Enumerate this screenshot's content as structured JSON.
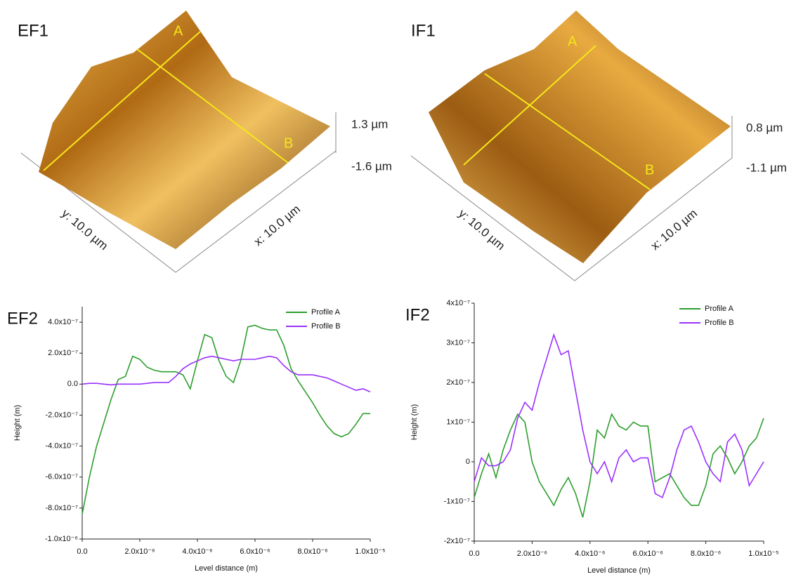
{
  "images": [
    {
      "label": "EF1",
      "line_labels": [
        "A",
        "B"
      ],
      "scale_labels": [
        "1.3 µm",
        "-1.6 µm"
      ],
      "axis_labels": [
        "y: 10.0 µm",
        "x: 10.0 µm"
      ]
    },
    {
      "label": "IF1",
      "line_labels": [
        "A",
        "B"
      ],
      "scale_labels": [
        "0.8 µm",
        "-1.1 µm"
      ],
      "axis_labels": [
        "y: 10.0 µm",
        "x: 10.0 µm"
      ]
    }
  ],
  "chart_data": [
    {
      "type": "line",
      "title": "EF2",
      "x_label": "Level distance (m)",
      "y_label": "Height (m)",
      "legend": "upper right",
      "x": [
        0,
        2.5e-07,
        5e-07,
        7.5e-07,
        1e-06,
        1.25e-06,
        1.5e-06,
        1.75e-06,
        2e-06,
        2.25e-06,
        2.5e-06,
        2.75e-06,
        3e-06,
        3.25e-06,
        3.5e-06,
        3.75e-06,
        4e-06,
        4.25e-06,
        4.5e-06,
        4.75e-06,
        5e-06,
        5.25e-06,
        5.5e-06,
        5.75e-06,
        6e-06,
        6.25e-06,
        6.5e-06,
        6.75e-06,
        7e-06,
        7.25e-06,
        7.5e-06,
        7.75e-06,
        8e-06,
        8.25e-06,
        8.5e-06,
        8.75e-06,
        9e-06,
        9.25e-06,
        9.5e-06,
        9.75e-06,
        1e-05
      ],
      "series": [
        {
          "name": "Profile A",
          "color": "#2e9e2e",
          "values": [
            -8.4e-07,
            -6e-07,
            -4e-07,
            -2.5e-07,
            -1e-07,
            3e-08,
            5e-08,
            1.8e-07,
            1.6e-07,
            1.1e-07,
            9e-08,
            8e-08,
            8e-08,
            8e-08,
            6e-08,
            -3e-08,
            1.5e-07,
            3.2e-07,
            3e-07,
            1.5e-07,
            5e-08,
            1e-08,
            1.5e-07,
            3.7e-07,
            3.8e-07,
            3.6e-07,
            3.5e-07,
            3.5e-07,
            2.5e-07,
            1e-07,
            2e-08,
            -5e-08,
            -1.2e-07,
            -2e-07,
            -2.7e-07,
            -3.2e-07,
            -3.4e-07,
            -3.2e-07,
            -2.6e-07,
            -1.9e-07,
            -1.9e-07
          ]
        },
        {
          "name": "Profile B",
          "color": "#9b30ff",
          "values": [
            0,
            5e-09,
            5e-09,
            0,
            -5e-09,
            0,
            0,
            0,
            0,
            5e-09,
            1e-08,
            1e-08,
            1e-08,
            5e-08,
            1e-07,
            1.3e-07,
            1.5e-07,
            1.7e-07,
            1.8e-07,
            1.7e-07,
            1.6e-07,
            1.5e-07,
            1.6e-07,
            1.6e-07,
            1.6e-07,
            1.7e-07,
            1.8e-07,
            1.7e-07,
            1.2e-07,
            8e-08,
            6e-08,
            6e-08,
            6e-08,
            5e-08,
            4e-08,
            2e-08,
            0,
            -2e-08,
            -4e-08,
            -3e-08,
            -5e-08
          ]
        }
      ],
      "xlim": [
        0,
        1e-05
      ],
      "ylim": [
        -1e-06,
        5e-07
      ],
      "xticks": [
        {
          "value": 0,
          "label": "0.0"
        },
        {
          "value": 2e-06,
          "label": "2.0x10⁻⁶"
        },
        {
          "value": 4e-06,
          "label": "4.0x10⁻⁶"
        },
        {
          "value": 6e-06,
          "label": "6.0x10⁻⁶"
        },
        {
          "value": 8e-06,
          "label": "8.0x10⁻⁶"
        },
        {
          "value": 1e-05,
          "label": "1.0x10⁻⁵"
        }
      ],
      "yticks": [
        {
          "value": -1e-06,
          "label": "-1.0x10⁻⁶"
        },
        {
          "value": -8e-07,
          "label": "-8.0x10⁻⁷"
        },
        {
          "value": -6e-07,
          "label": "-6.0x10⁻⁷"
        },
        {
          "value": -4e-07,
          "label": "-4.0x10⁻⁷"
        },
        {
          "value": -2e-07,
          "label": "-2.0x10⁻⁷"
        },
        {
          "value": 0,
          "label": "0.0"
        },
        {
          "value": 2e-07,
          "label": "2.0x10⁻⁷"
        },
        {
          "value": 4e-07,
          "label": "4.0x10⁻⁷"
        }
      ]
    },
    {
      "type": "line",
      "title": "IF2",
      "x_label": "Level distance (m)",
      "y_label": "Height (m)",
      "legend": "upper right",
      "x": [
        0,
        2.5e-07,
        5e-07,
        7.5e-07,
        1e-06,
        1.25e-06,
        1.5e-06,
        1.75e-06,
        2e-06,
        2.25e-06,
        2.5e-06,
        2.75e-06,
        3e-06,
        3.25e-06,
        3.5e-06,
        3.75e-06,
        4e-06,
        4.25e-06,
        4.5e-06,
        4.75e-06,
        5e-06,
        5.25e-06,
        5.5e-06,
        5.75e-06,
        6e-06,
        6.25e-06,
        6.5e-06,
        6.75e-06,
        7e-06,
        7.25e-06,
        7.5e-06,
        7.75e-06,
        8e-06,
        8.25e-06,
        8.5e-06,
        8.75e-06,
        9e-06,
        9.25e-06,
        9.5e-06,
        9.75e-06,
        1e-05
      ],
      "series": [
        {
          "name": "Profile A",
          "color": "#2e9e2e",
          "values": [
            -9e-08,
            -3e-08,
            2e-08,
            -4e-08,
            3e-08,
            8e-08,
            1.2e-07,
            1e-07,
            0,
            -5e-08,
            -8e-08,
            -1.1e-07,
            -7e-08,
            -4e-08,
            -8e-08,
            -1.4e-07,
            -5e-08,
            8e-08,
            6e-08,
            1.2e-07,
            9e-08,
            8e-08,
            1e-07,
            9e-08,
            9e-08,
            -5e-08,
            -4e-08,
            -3e-08,
            -6e-08,
            -9e-08,
            -1.1e-07,
            -1.1e-07,
            -6e-08,
            2e-08,
            4e-08,
            1e-08,
            -3e-08,
            0,
            4e-08,
            6e-08,
            1.1e-07
          ]
        },
        {
          "name": "Profile B",
          "color": "#9b30ff",
          "values": [
            -5e-08,
            1e-08,
            -1e-08,
            -1e-08,
            0,
            3e-08,
            1.1e-07,
            1.5e-07,
            1.3e-07,
            2e-07,
            2.6e-07,
            3.2e-07,
            2.7e-07,
            2.8e-07,
            1.8e-07,
            8e-08,
            0,
            -3e-08,
            0,
            -5e-08,
            1e-08,
            3e-08,
            0,
            1e-08,
            1e-08,
            -8e-08,
            -9e-08,
            -4e-08,
            3e-08,
            8e-08,
            9e-08,
            5e-08,
            0,
            -3e-08,
            -5e-08,
            5e-08,
            7e-08,
            3e-08,
            -6e-08,
            -3e-08,
            0
          ]
        }
      ],
      "xlim": [
        0,
        1e-05
      ],
      "ylim": [
        -2e-07,
        4e-07
      ],
      "xticks": [
        {
          "value": 0,
          "label": "0.0"
        },
        {
          "value": 2e-06,
          "label": "2.0x10⁻⁶"
        },
        {
          "value": 4e-06,
          "label": "4.0x10⁻⁶"
        },
        {
          "value": 6e-06,
          "label": "6.0x10⁻⁶"
        },
        {
          "value": 8e-06,
          "label": "8.0x10⁻⁶"
        },
        {
          "value": 1e-05,
          "label": "1.0x10⁻⁵"
        }
      ],
      "yticks": [
        {
          "value": -2e-07,
          "label": "-2x10⁻⁷"
        },
        {
          "value": -1e-07,
          "label": "-1x10⁻⁷"
        },
        0,
        {
          "value": 1e-07,
          "label": "1x10⁻⁷"
        },
        {
          "value": 2e-07,
          "label": "2x10⁻⁷"
        },
        {
          "value": 3e-07,
          "label": "3x10⁻⁷"
        },
        {
          "value": 4e-07,
          "label": "4x10⁻⁷"
        }
      ]
    }
  ]
}
